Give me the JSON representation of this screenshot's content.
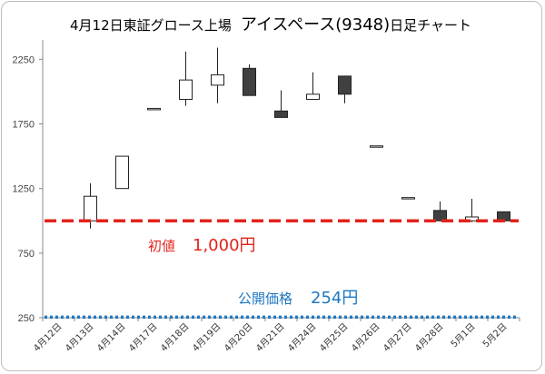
{
  "title": {
    "prefix": "4月12日東証グロース上場",
    "name": "アイスペース(9348)",
    "suffix": "日足チャート"
  },
  "annotations": {
    "ipo_price_label": "初値",
    "ipo_price_value": "1,000円",
    "offer_price_label": "公開価格",
    "offer_price_value": "254円"
  },
  "colors": {
    "ipo_line": "#e2231a",
    "offer_line": "#1f78c1",
    "bear_fill": "#404040",
    "bull_fill": "#ffffff"
  },
  "chart_data": {
    "type": "candlestick",
    "ylim": [
      250,
      2400
    ],
    "yticks": [
      250,
      750,
      1250,
      1750,
      2250
    ],
    "ytick_labels": [
      "250",
      "750",
      "1250",
      "1750",
      "2250"
    ],
    "grid": false,
    "categories": [
      "4月12日",
      "4月13日",
      "4月14日",
      "4月17日",
      "4月18日",
      "4月19日",
      "4月20日",
      "4月21日",
      "4月24日",
      "4月25日",
      "4月26日",
      "4月27日",
      "4月28日",
      "5月1日",
      "5月2日"
    ],
    "ohlc": [
      {
        "open": null,
        "high": null,
        "low": null,
        "close": null
      },
      {
        "open": 1000,
        "high": 1290,
        "low": 940,
        "close": 1190
      },
      {
        "open": 1250,
        "high": 1500,
        "low": 1250,
        "close": 1500
      },
      {
        "open": 1870,
        "high": 1870,
        "low": 1870,
        "close": 1870
      },
      {
        "open": 1940,
        "high": 2310,
        "low": 1890,
        "close": 2090
      },
      {
        "open": 2050,
        "high": 2340,
        "low": 1910,
        "close": 2130
      },
      {
        "open": 2180,
        "high": 2210,
        "low": 1970,
        "close": 1970
      },
      {
        "open": 1850,
        "high": 2010,
        "low": 1800,
        "close": 1800
      },
      {
        "open": 1940,
        "high": 2150,
        "low": 1940,
        "close": 1980
      },
      {
        "open": 2120,
        "high": 2120,
        "low": 1910,
        "close": 1980
      },
      {
        "open": 1580,
        "high": 1580,
        "low": 1580,
        "close": 1580
      },
      {
        "open": 1180,
        "high": 1180,
        "low": 1180,
        "close": 1180
      },
      {
        "open": 1080,
        "high": 1150,
        "low": 1000,
        "close": 1000
      },
      {
        "open": 1000,
        "high": 1170,
        "low": 990,
        "close": 1030
      },
      {
        "open": 1070,
        "high": 1070,
        "low": 1000,
        "close": 1000
      }
    ],
    "reference_lines": [
      {
        "value": 1000,
        "style": "dashed"
      },
      {
        "value": 254,
        "style": "dotted"
      }
    ]
  }
}
